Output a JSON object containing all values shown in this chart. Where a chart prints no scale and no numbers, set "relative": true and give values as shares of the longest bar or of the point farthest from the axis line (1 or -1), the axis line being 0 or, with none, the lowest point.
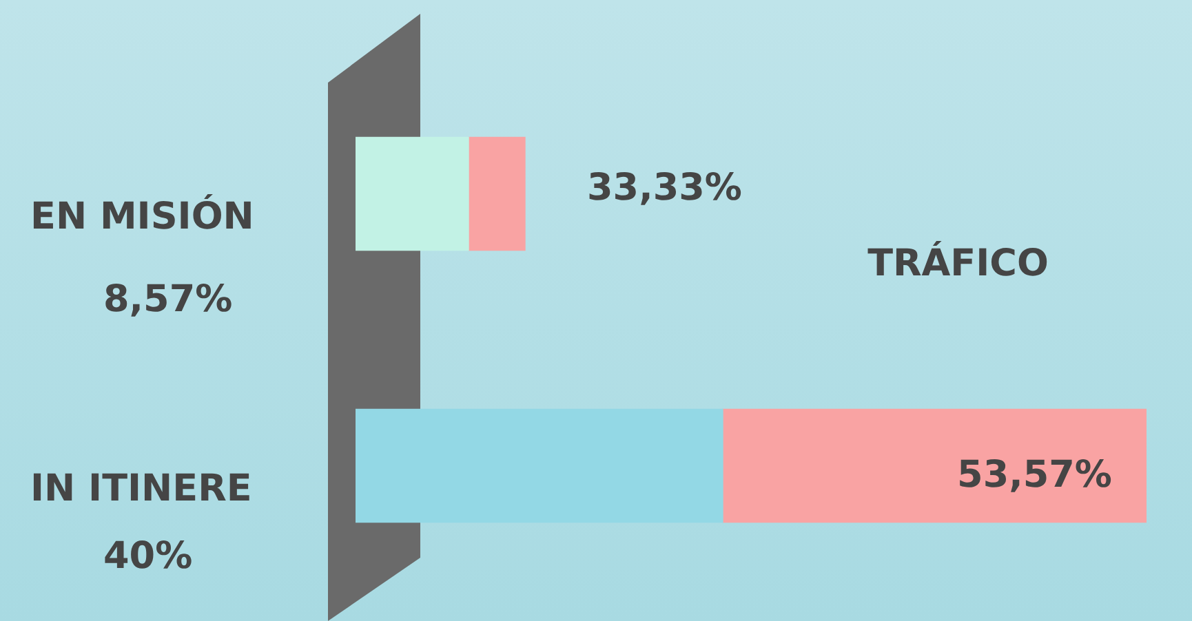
{
  "chart_data": {
    "type": "bar",
    "orientation": "horizontal",
    "stacked": true,
    "categories": [
      "EN MISIÓN",
      "IN ITINERE"
    ],
    "relative": true,
    "series": [
      {
        "colors": [
          "#c2f2e5",
          "#93d8e5"
        ],
        "values": [
          0.1429,
          0.4643
        ]
      },
      {
        "name": "TRÁFICO",
        "color": "#f9a3a3",
        "values": [
          0.0714,
          0.5357
        ]
      }
    ],
    "annotations": [
      "8,57%",
      "40%",
      {
        "text": "33,33%",
        "x": 0.2143,
        "y": "EN MISIÓN"
      },
      {
        "text": "53,57%",
        "x": 1,
        "y": "IN ITINERE"
      }
    ],
    "legend": false
  }
}
